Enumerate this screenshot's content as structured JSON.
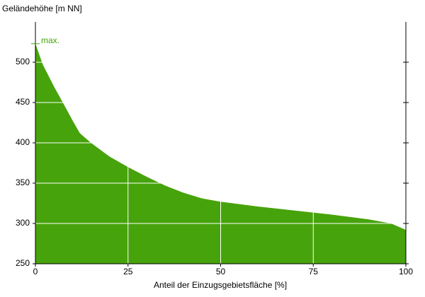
{
  "chart_data": {
    "type": "area",
    "y_label": "Geländehöhe [m NN]",
    "x_label": "Anteil der Einzugsgebietsfläche [%]",
    "color": "#47a30b",
    "x": [
      0,
      1,
      2,
      3,
      5,
      8,
      10,
      12,
      15,
      20,
      25,
      30,
      35,
      40,
      45,
      50,
      60,
      70,
      80,
      90,
      96,
      100
    ],
    "values": [
      523,
      510,
      497,
      488,
      470,
      445,
      428,
      412,
      400,
      383,
      370,
      358,
      347,
      338,
      331,
      327,
      321,
      316,
      311,
      305,
      300,
      292
    ],
    "annotation": {
      "text": "max.",
      "value": 523
    },
    "xlim": [
      0,
      100
    ],
    "xticks": [
      0,
      25,
      50,
      75,
      100
    ],
    "ylim": [
      250,
      550
    ],
    "yticks": [
      250,
      300,
      350,
      400,
      450,
      500
    ],
    "grid": true
  }
}
